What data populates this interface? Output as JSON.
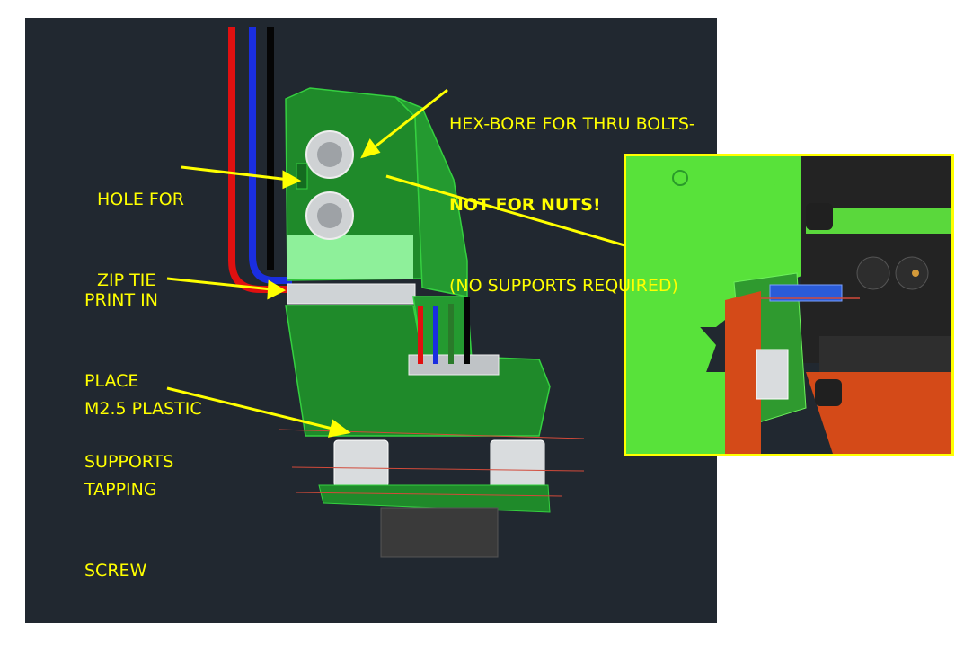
{
  "annotations": {
    "hex_bore_line1": "HEX-BORE FOR THRU BOLTS-",
    "hex_bore_line2": "NOT FOR NUTS!",
    "hex_bore_line3": "(NO SUPPORTS REQUIRED)",
    "zip_tie_line1": "HOLE FOR",
    "zip_tie_line2": "ZIP TIE",
    "print_line1": "PRINT IN",
    "print_line2": "PLACE",
    "print_line3": "SUPPORTS",
    "screw_line1": "M2.5 PLASTIC",
    "screw_line2": "TAPPING",
    "screw_line3": "SCREW"
  },
  "colors": {
    "viewport_bg": "#212830",
    "part_green": "#1f8a2a",
    "part_green_light": "#39c43d",
    "annotation_yellow": "#ffff00",
    "support_light_green": "#8ef09a",
    "wire_red": "#e01010",
    "wire_blue": "#1a2ee0",
    "wire_black": "#050505"
  }
}
